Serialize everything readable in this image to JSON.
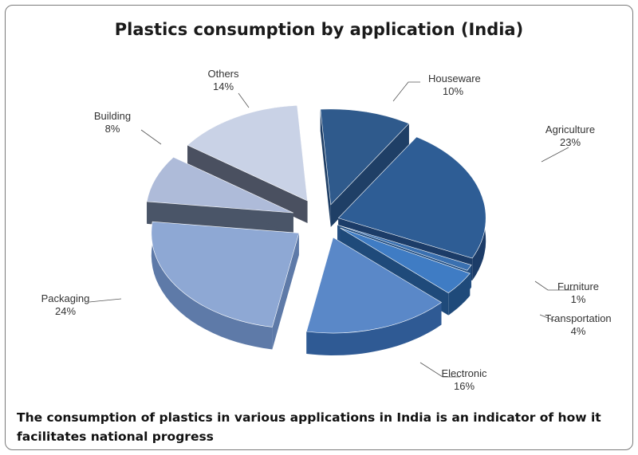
{
  "chart_data": {
    "type": "pie",
    "title": "Plastics consumption by application (India)",
    "slices": [
      {
        "label": "Houseware",
        "value": 10,
        "value_label": "10%",
        "color": "#2f5a8c",
        "side": "#1f3f66"
      },
      {
        "label": "Agriculture",
        "value": 23,
        "value_label": "23%",
        "color": "#2e5d95",
        "side": "#1c3c68"
      },
      {
        "label": "Furniture",
        "value": 1,
        "value_label": "1%",
        "color": "#3a70b0",
        "side": "#244f82"
      },
      {
        "label": "Transportation",
        "value": 4,
        "value_label": "4%",
        "color": "#3f7cc4",
        "side": "#1f4a7a"
      },
      {
        "label": "Electronic",
        "value": 16,
        "value_label": "16%",
        "color": "#5a88c8",
        "side": "#2f5a94"
      },
      {
        "label": "Packaging",
        "value": 24,
        "value_label": "24%",
        "color": "#8ea8d4",
        "side": "#5e7aa8"
      },
      {
        "label": "Building",
        "value": 8,
        "value_label": "8%",
        "color": "#aebbd9",
        "side": "#4a5568"
      },
      {
        "label": "Others",
        "value": 14,
        "value_label": "14%",
        "color": "#c9d2e6",
        "side": "#4a5060"
      }
    ]
  },
  "caption": "The consumption of plastics in various applications in India is an indicator of how it facilitates national progress"
}
